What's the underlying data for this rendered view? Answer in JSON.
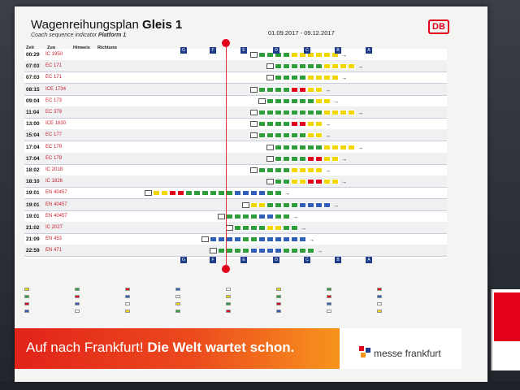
{
  "poster": {
    "title_main": "Wagenreihungsplan",
    "title_bold": "Gleis 1",
    "subtitle_main": "Coach sequence indicator",
    "subtitle_bold": "Platform 1",
    "date_range": "01.09.2017 - 09.12.2017",
    "logo_text": "DB",
    "headers": {
      "time": "Zeit",
      "train": "Zug",
      "note": "Hinweis",
      "direction": "Richtung"
    },
    "sectors": [
      "G",
      "F",
      "E",
      "D",
      "C",
      "B",
      "A"
    ],
    "bottom_sectors": [
      "G",
      "F",
      "E",
      "D",
      "C",
      "B",
      "A"
    ]
  },
  "rows": [
    {
      "time": "00:29",
      "type": "IC",
      "num": "1950"
    },
    {
      "time": "07:03",
      "type": "EC",
      "num": "171"
    },
    {
      "time": "07:03",
      "type": "EC",
      "num": "171"
    },
    {
      "time": "08:15",
      "type": "ICE",
      "num": "1734"
    },
    {
      "time": "09:04",
      "type": "EC",
      "num": "173"
    },
    {
      "time": "11:04",
      "type": "EC",
      "num": "379"
    },
    {
      "time": "13:00",
      "type": "ICE",
      "num": "1630"
    },
    {
      "time": "15:04",
      "type": "EC",
      "num": "177"
    },
    {
      "time": "17:04",
      "type": "EC",
      "num": "179"
    },
    {
      "time": "17:04",
      "type": "EC",
      "num": "179"
    },
    {
      "time": "18:02",
      "type": "IC",
      "num": "2018"
    },
    {
      "time": "18:10",
      "type": "IC",
      "num": "1826"
    },
    {
      "time": "19:01",
      "type": "EN",
      "num": "40457"
    },
    {
      "time": "19:01",
      "type": "EN",
      "num": "40457"
    },
    {
      "time": "19:01",
      "type": "EN",
      "num": "40457"
    },
    {
      "time": "21:02",
      "type": "IC",
      "num": "2027"
    },
    {
      "time": "21:09",
      "type": "EN",
      "num": "453"
    },
    {
      "time": "22:59",
      "type": "EN",
      "num": "471"
    }
  ],
  "banner": {
    "slogan_main": "Auf nach Frankfurt!",
    "slogan_bold": "Die Welt wartet schon.",
    "brand": "messe frankfurt"
  },
  "colors": {
    "first_class": "#f2d600",
    "second_class": "#2e9e3a",
    "sleeper": "#2f5fb8",
    "restaurant": "#e3001b",
    "locomotive": "#ffffff",
    "db_red": "#e3001b"
  }
}
